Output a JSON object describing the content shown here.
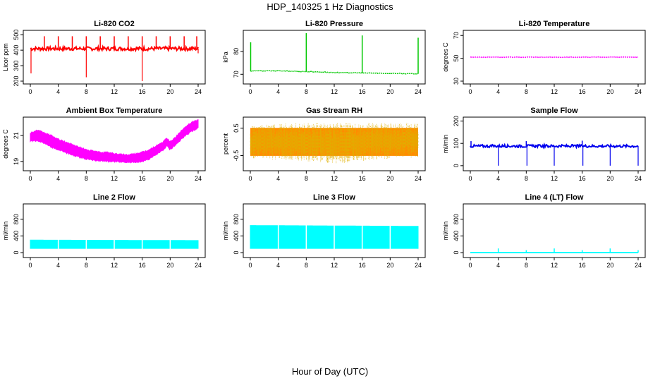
{
  "figure": {
    "title": "HDP_140325  1 Hz Diagnostics",
    "xlabel": "Hour of Day (UTC)"
  },
  "chart_data": [
    {
      "type": "line",
      "title": "Li-820 CO2",
      "ylabel": "Licor ppm",
      "xlim": [
        0,
        24
      ],
      "ylim": [
        200,
        510
      ],
      "x_ticks": [
        "0",
        "4",
        "8",
        "12",
        "16",
        "20",
        "24"
      ],
      "y_ticks": [
        "200",
        "300",
        "400",
        "500"
      ],
      "color": "#ff0000",
      "series": [
        {
          "baseline": 410,
          "band": [
            398,
            422
          ],
          "spikes_up": [
            {
              "x": 2.0,
              "y": 490
            },
            {
              "x": 4.0,
              "y": 490
            },
            {
              "x": 6.0,
              "y": 490
            },
            {
              "x": 8.0,
              "y": 490
            },
            {
              "x": 10.0,
              "y": 490
            },
            {
              "x": 12.0,
              "y": 490
            },
            {
              "x": 14.0,
              "y": 490
            },
            {
              "x": 16.0,
              "y": 490
            },
            {
              "x": 18.0,
              "y": 490
            },
            {
              "x": 20.0,
              "y": 490
            },
            {
              "x": 22.0,
              "y": 490
            },
            {
              "x": 23.8,
              "y": 490
            }
          ],
          "spikes_down": [
            {
              "x": 0.1,
              "y": 250
            },
            {
              "x": 8.0,
              "y": 225
            },
            {
              "x": 16.0,
              "y": 200
            },
            {
              "x": 24.0,
              "y": 380
            }
          ]
        }
      ]
    },
    {
      "type": "line",
      "title": "Li-820 Pressure",
      "ylabel": "kPa",
      "xlim": [
        0,
        24
      ],
      "ylim": [
        67,
        88
      ],
      "x_ticks": [
        "0",
        "4",
        "8",
        "12",
        "16",
        "20",
        "24"
      ],
      "y_ticks": [
        "70",
        "80"
      ],
      "color": "#00c800",
      "series": [
        {
          "x": [
            0,
            4,
            8,
            12,
            16,
            20,
            24
          ],
          "y": [
            71.5,
            71.5,
            71.2,
            70.8,
            70.6,
            70.4,
            70.2
          ],
          "spikes_up": [
            {
              "x": 0.05,
              "y": 84
            },
            {
              "x": 8.0,
              "y": 88
            },
            {
              "x": 16.0,
              "y": 87
            },
            {
              "x": 24.0,
              "y": 86
            }
          ]
        }
      ]
    },
    {
      "type": "line",
      "title": "Li-820 Temperature",
      "ylabel": "degrees C",
      "xlim": [
        0,
        24
      ],
      "ylim": [
        30,
        72
      ],
      "x_ticks": [
        "0",
        "4",
        "8",
        "12",
        "16",
        "20",
        "24"
      ],
      "y_ticks": [
        "30",
        "50",
        "70"
      ],
      "color": "#ff00ff",
      "series": [
        {
          "x": [
            0,
            24
          ],
          "y": [
            51,
            51
          ]
        }
      ]
    },
    {
      "type": "area",
      "title": "Ambient Box Temperature",
      "ylabel": "degrees C",
      "xlim": [
        0,
        24
      ],
      "ylim": [
        18.5,
        22.2
      ],
      "x_ticks": [
        "0",
        "4",
        "8",
        "12",
        "16",
        "20",
        "24"
      ],
      "y_ticks": [
        "19",
        "21"
      ],
      "color": "#ff00ff",
      "series": [
        {
          "x": [
            0,
            1,
            2,
            3,
            4,
            5,
            6,
            7,
            8,
            9,
            10,
            11,
            12,
            13,
            14,
            15,
            16,
            17,
            18,
            19,
            19.5,
            20,
            21,
            22,
            23,
            24
          ],
          "y_lo": [
            20.6,
            20.6,
            20.4,
            20.1,
            19.9,
            19.7,
            19.5,
            19.35,
            19.2,
            19.1,
            19.05,
            19.0,
            19.0,
            18.95,
            18.95,
            18.95,
            19.0,
            19.2,
            19.55,
            19.9,
            20.2,
            19.9,
            20.4,
            20.9,
            21.3,
            21.6
          ],
          "y_hi": [
            21.2,
            21.4,
            21.2,
            21.0,
            20.7,
            20.5,
            20.3,
            20.1,
            19.9,
            19.8,
            19.7,
            19.7,
            19.6,
            19.55,
            19.5,
            19.6,
            19.7,
            19.9,
            20.2,
            20.5,
            20.8,
            20.5,
            21.0,
            21.6,
            22.0,
            22.2
          ]
        }
      ]
    },
    {
      "type": "area",
      "title": "Gas Stream RH",
      "ylabel": "percent",
      "xlim": [
        0,
        24
      ],
      "ylim": [
        -0.95,
        0.8
      ],
      "x_ticks": [
        "0",
        "4",
        "8",
        "12",
        "16",
        "20",
        "24"
      ],
      "y_ticks": [
        "-0.5",
        "0.5"
      ],
      "color": "#ff8c00",
      "series": [
        {
          "x": [
            0,
            4,
            8,
            12,
            16,
            20,
            24
          ],
          "y_lo": [
            -0.6,
            -0.65,
            -0.7,
            -0.8,
            -0.7,
            -0.6,
            -0.6
          ],
          "y_hi": [
            0.6,
            0.65,
            0.7,
            0.7,
            0.7,
            0.7,
            0.7
          ]
        }
      ]
    },
    {
      "type": "line",
      "title": "Sample Flow",
      "ylabel": "ml/min",
      "xlim": [
        0,
        24
      ],
      "ylim": [
        -10,
        205
      ],
      "x_ticks": [
        "0",
        "4",
        "8",
        "12",
        "16",
        "20",
        "24"
      ],
      "y_ticks": [
        "0",
        "100",
        "200"
      ],
      "color": "#0000ee",
      "series": [
        {
          "baseline": 88,
          "band": [
            82,
            94
          ],
          "spikes_up": [
            {
              "x": 0.1,
              "y": 110
            },
            {
              "x": 8.0,
              "y": 110
            },
            {
              "x": 16.0,
              "y": 112
            }
          ],
          "spikes_down": [
            {
              "x": 4.0,
              "y": 0
            },
            {
              "x": 8.1,
              "y": 0
            },
            {
              "x": 12.0,
              "y": 0
            },
            {
              "x": 16.1,
              "y": 0
            },
            {
              "x": 20.0,
              "y": 0
            },
            {
              "x": 24.0,
              "y": 0
            }
          ]
        }
      ]
    },
    {
      "type": "area",
      "title": "Line 2 Flow",
      "ylabel": "ml/min",
      "xlim": [
        0,
        24
      ],
      "ylim": [
        -50,
        1100
      ],
      "x_ticks": [
        "0",
        "4",
        "8",
        "12",
        "16",
        "20",
        "24"
      ],
      "y_ticks": [
        "0",
        "400",
        "800"
      ],
      "color": "#00ffff",
      "series": [
        {
          "x": [
            0,
            24
          ],
          "y_lo": [
            100,
            100
          ],
          "y_hi": [
            300,
            290
          ],
          "gaps": [
            4,
            8,
            12,
            16,
            20
          ]
        }
      ]
    },
    {
      "type": "area",
      "title": "Line 3 Flow",
      "ylabel": "ml/min",
      "xlim": [
        0,
        24
      ],
      "ylim": [
        -50,
        1100
      ],
      "x_ticks": [
        "0",
        "4",
        "8",
        "12",
        "16",
        "20",
        "24"
      ],
      "y_ticks": [
        "0",
        "400",
        "800"
      ],
      "color": "#00ffff",
      "series": [
        {
          "x": [
            0,
            24
          ],
          "y_lo": [
            100,
            100
          ],
          "y_hi": [
            650,
            630
          ],
          "gaps": [
            4,
            8,
            12,
            16,
            20
          ]
        }
      ]
    },
    {
      "type": "line",
      "title": "Line 4 (LT) Flow",
      "ylabel": "ml/min",
      "xlim": [
        0,
        24
      ],
      "ylim": [
        -50,
        1100
      ],
      "x_ticks": [
        "0",
        "4",
        "8",
        "12",
        "16",
        "20",
        "24"
      ],
      "y_ticks": [
        "0",
        "400",
        "800"
      ],
      "color": "#00ffff",
      "series": [
        {
          "baseline": 0,
          "band": [
            0,
            0
          ],
          "spikes_up": [
            {
              "x": 4.0,
              "y": 100
            },
            {
              "x": 8.0,
              "y": 60
            },
            {
              "x": 12.0,
              "y": 100
            },
            {
              "x": 16.0,
              "y": 60
            },
            {
              "x": 20.0,
              "y": 100
            },
            {
              "x": 24.0,
              "y": 60
            }
          ]
        }
      ]
    }
  ]
}
